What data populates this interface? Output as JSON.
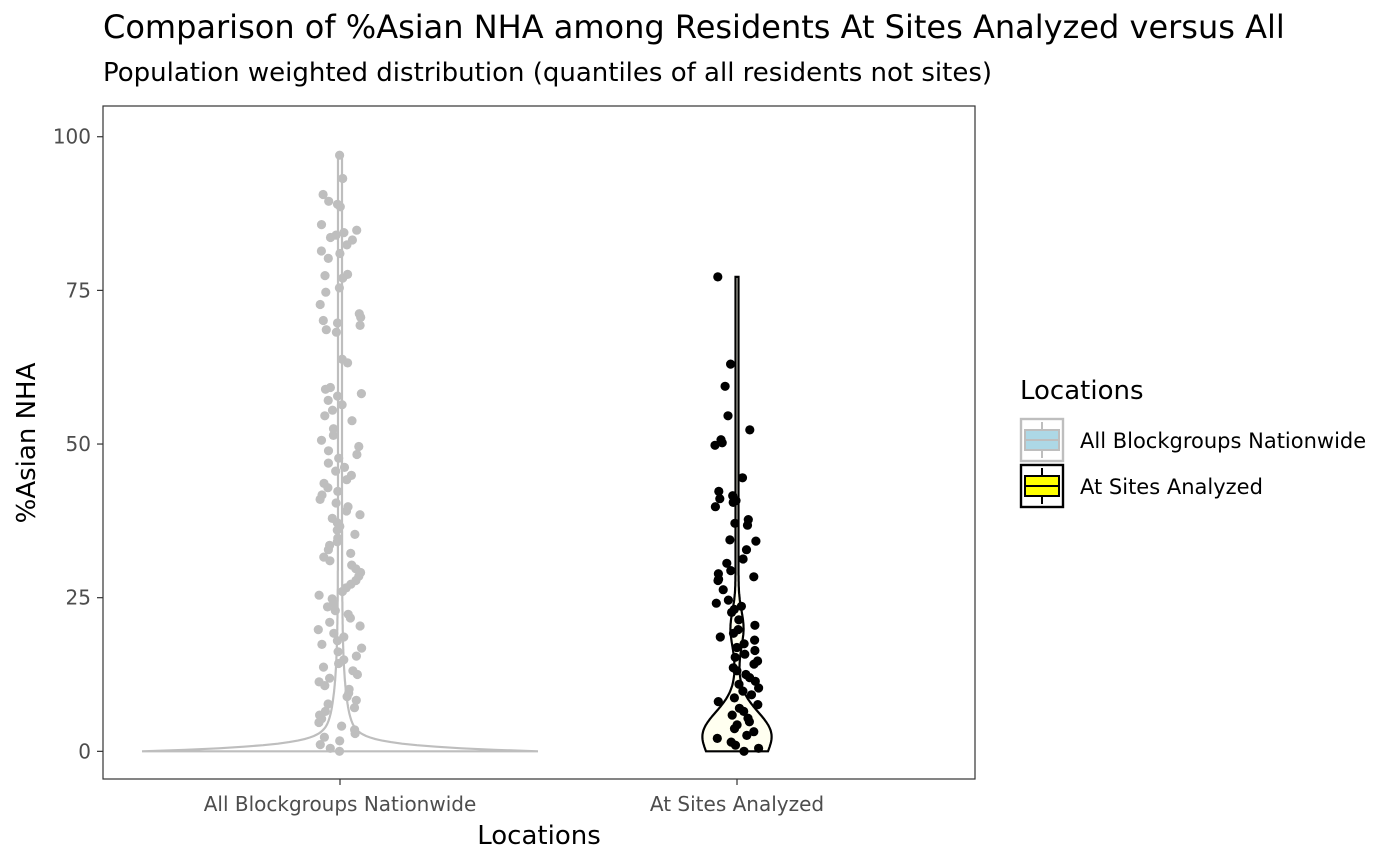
{
  "chart_data": {
    "type": "scatter",
    "title": "Comparison of %Asian NHA among Residents At Sites Analyzed versus All",
    "subtitle": "Population weighted distribution (quantiles of all residents not sites)",
    "xlabel": "Locations",
    "ylabel": "%Asian NHA",
    "ylim": [
      -4.5,
      105
    ],
    "y_ticks": [
      0,
      25,
      50,
      75,
      100
    ],
    "grid": false,
    "legend_position": "right",
    "categories": [
      "All Blockgroups Nationwide",
      "At Sites Analyzed"
    ],
    "legend": {
      "title": "Locations",
      "items": [
        {
          "label": "All Blockgroups Nationwide",
          "fill": "#add8e6",
          "line": "#bebebe"
        },
        {
          "label": "At Sites Analyzed",
          "fill": "#ffff00",
          "line": "#000000"
        }
      ]
    },
    "series": [
      {
        "category": "All Blockgroups Nationwide",
        "point_color": "#bebebe",
        "violin_line": "#bebebe",
        "violin_fill": "#ffffff",
        "violin_max": 97,
        "points": [
          97,
          93.2,
          90.6,
          89.5,
          89,
          88.6,
          85.7,
          84.8,
          84.4,
          84,
          83.6,
          83.2,
          82.4,
          81.4,
          81,
          80.2,
          77.6,
          77.4,
          77,
          75.4,
          74.7,
          72.7,
          71.2,
          70.6,
          70.1,
          69.7,
          69.3,
          68.6,
          68.2,
          63.8,
          63.2,
          59.2,
          58.9,
          58.2,
          57.8,
          57.1,
          56.4,
          55.5,
          54.6,
          53.8,
          52.5,
          51.4,
          50.6,
          49.6,
          48.9,
          48.3,
          47.7,
          46.9,
          46.2,
          45.6,
          44.9,
          44.2,
          43.6,
          42.9,
          42.3,
          41.7,
          41.0,
          40.4,
          39.8,
          39.1,
          38.5,
          37.9,
          37.2,
          36.6,
          36.0,
          35.3,
          34.7,
          34.1,
          33.5,
          32.8,
          32.2,
          31.6,
          31.0,
          30.3,
          29.7,
          29.1,
          28.5,
          27.8,
          27.2,
          26.6,
          26.0,
          25.4,
          24.8,
          24.1,
          23.5,
          22.9,
          22.3,
          21.7,
          21.0,
          20.4,
          19.8,
          19.2,
          18.6,
          18.0,
          17.4,
          16.8,
          16.2,
          15.5,
          14.9,
          14.3,
          13.7,
          13.1,
          12.5,
          11.9,
          11.3,
          10.7,
          10.1,
          9.5,
          8.9,
          8.3,
          7.7,
          7.1,
          6.5,
          5.9,
          5.3,
          4.7,
          4.1,
          3.5,
          2.9,
          2.3,
          1.7,
          1.1,
          0.5,
          0
        ]
      },
      {
        "category": "At Sites Analyzed",
        "point_color": "#000000",
        "violin_line": "#000000",
        "violin_fill": "#fffff0",
        "violin_max": 77.2,
        "points": [
          77.2,
          63,
          59.4,
          54.6,
          52.3,
          50.7,
          50.2,
          49.8,
          44.5,
          42.3,
          41.6,
          41.1,
          40.8,
          40.5,
          39.8,
          37.7,
          37.1,
          36.8,
          34.4,
          34.2,
          32.8,
          31.3,
          30.6,
          29.4,
          28.9,
          28.4,
          28,
          27.8,
          26.3,
          24.6,
          24.1,
          23.6,
          23.1,
          22.6,
          21.4,
          20.5,
          19.8,
          19.2,
          18.6,
          18.1,
          17.5,
          16.9,
          16.4,
          15.8,
          15.3,
          14.7,
          14.2,
          13.6,
          13.1,
          12.5,
          12.0,
          11.4,
          10.9,
          10.3,
          9.8,
          9.2,
          8.7,
          8.1,
          7.6,
          7.0,
          6.5,
          5.9,
          5.4,
          4.8,
          4.3,
          3.7,
          3.2,
          2.6,
          2.1,
          1.5,
          1.0,
          0.5,
          0
        ]
      }
    ]
  }
}
